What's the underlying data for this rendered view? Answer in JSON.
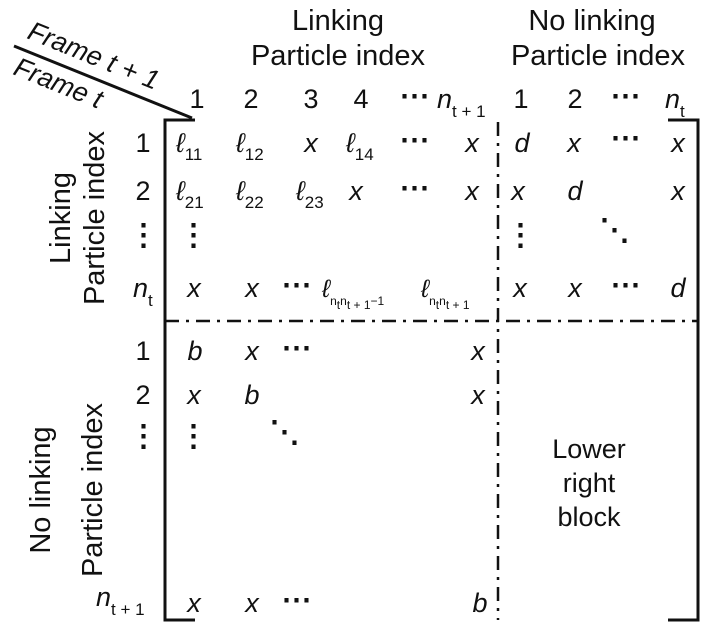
{
  "corner": {
    "top": "Frame t + 1",
    "bottom": "Frame t"
  },
  "column_groups": {
    "linking": {
      "line1": "Linking",
      "line2": "Particle index"
    },
    "no_linking": {
      "line1": "No linking",
      "line2": "Particle index"
    }
  },
  "row_groups": {
    "linking": {
      "line1": "Linking",
      "line2": "Particle index"
    },
    "no_linking": {
      "line1": "No linking",
      "line2": "Particle index"
    }
  },
  "column_indices": {
    "linking": [
      "1",
      "2",
      "3",
      "4",
      "⋯",
      "n",
      "t + 1"
    ],
    "no_linking": [
      "1",
      "2",
      "⋯",
      "n",
      "t"
    ]
  },
  "row_indices": {
    "linking": [
      "1",
      "2",
      "⋮",
      "n",
      "t"
    ],
    "no_linking": [
      "1",
      "2",
      "⋮",
      "n",
      "t + 1"
    ]
  },
  "cells": {
    "ell": "ℓ",
    "x": "x",
    "d": "d",
    "b": "b",
    "dots": "⋯",
    "vdots": "⋮",
    "ddots": "⋱",
    "sub_11": "11",
    "sub_12": "12",
    "sub_14": "14",
    "sub_21": "21",
    "sub_22": "22",
    "sub_23": "23",
    "sub_n": "n",
    "subsub_t": "t",
    "subsub_t1": "t + 1",
    "minus_one": "−1"
  },
  "lower_right_block": [
    "Lower",
    "right",
    "block"
  ]
}
